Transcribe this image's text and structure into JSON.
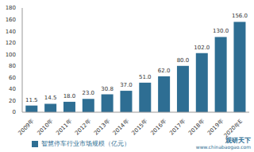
{
  "chart_data": {
    "type": "bar",
    "categories": [
      "2009年",
      "2010年",
      "2011年",
      "2012年",
      "2013年",
      "2014年",
      "2015年",
      "2016年",
      "2017年",
      "2018年",
      "2019年",
      "2020年E"
    ],
    "series": [
      {
        "name": "智慧停车行业市场规模（亿元）",
        "color": "#2e6e93",
        "values": [
          11.5,
          14.5,
          18.0,
          23.0,
          30.8,
          37.0,
          51.0,
          62.0,
          80.0,
          102.0,
          130.0,
          156.0
        ],
        "value_labels": [
          "11.5",
          "14.5",
          "18.0",
          "23.0",
          "30.8",
          "37.0",
          "51.0",
          "62.0",
          "80.0",
          "102.0",
          "130.0",
          "156.0"
        ]
      }
    ],
    "ylim": [
      0,
      180
    ],
    "yticks": [
      0,
      20,
      40,
      60,
      80,
      100,
      120,
      140,
      160,
      180
    ],
    "grid": false,
    "legend": "bottom",
    "data_labels": true,
    "annotations": [
      "观研天下",
      "www.chinabaogao.com"
    ]
  }
}
